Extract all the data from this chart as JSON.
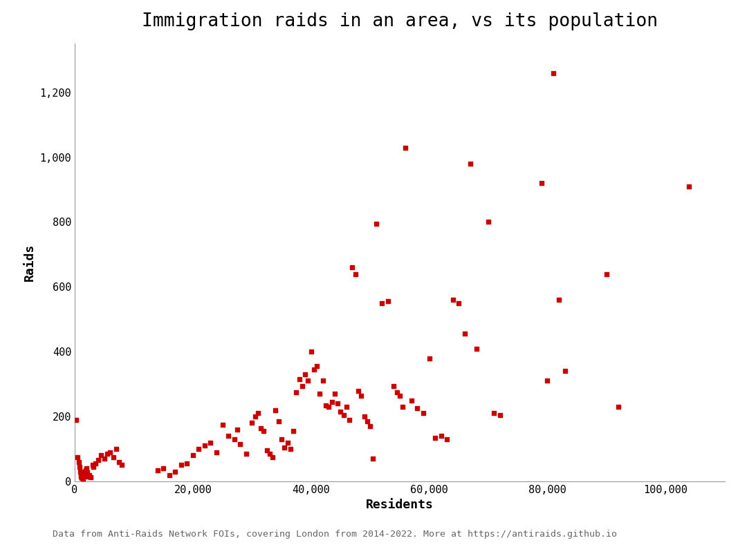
{
  "title": "Immigration raids in an area, vs its population",
  "xlabel": "Residents",
  "ylabel": "Raids",
  "footnote": "Data from Anti-Raids Network FOIs, covering London from 2014-2022. More at https://antiraids.github.io",
  "xlim": [
    0,
    110000
  ],
  "ylim": [
    0,
    1350
  ],
  "point_color": "#cc0000",
  "marker_size": 25,
  "background_color": "#ffffff",
  "points": [
    [
      200,
      190
    ],
    [
      500,
      75
    ],
    [
      700,
      60
    ],
    [
      800,
      45
    ],
    [
      900,
      30
    ],
    [
      1000,
      20
    ],
    [
      1100,
      15
    ],
    [
      1200,
      10
    ],
    [
      1300,
      12
    ],
    [
      1400,
      8
    ],
    [
      1500,
      25
    ],
    [
      1600,
      18
    ],
    [
      1700,
      22
    ],
    [
      1800,
      30
    ],
    [
      1900,
      35
    ],
    [
      2000,
      40
    ],
    [
      2100,
      28
    ],
    [
      2200,
      15
    ],
    [
      2500,
      20
    ],
    [
      2700,
      12
    ],
    [
      3000,
      50
    ],
    [
      3200,
      45
    ],
    [
      3500,
      55
    ],
    [
      4000,
      65
    ],
    [
      4500,
      80
    ],
    [
      5000,
      70
    ],
    [
      5500,
      85
    ],
    [
      6000,
      90
    ],
    [
      6500,
      75
    ],
    [
      7000,
      100
    ],
    [
      7500,
      60
    ],
    [
      8000,
      50
    ],
    [
      14000,
      35
    ],
    [
      15000,
      40
    ],
    [
      16000,
      20
    ],
    [
      17000,
      30
    ],
    [
      18000,
      50
    ],
    [
      19000,
      55
    ],
    [
      20000,
      80
    ],
    [
      21000,
      100
    ],
    [
      22000,
      110
    ],
    [
      23000,
      120
    ],
    [
      24000,
      90
    ],
    [
      25000,
      175
    ],
    [
      26000,
      140
    ],
    [
      27000,
      130
    ],
    [
      27500,
      160
    ],
    [
      28000,
      115
    ],
    [
      29000,
      85
    ],
    [
      30000,
      180
    ],
    [
      30500,
      200
    ],
    [
      31000,
      210
    ],
    [
      31500,
      165
    ],
    [
      32000,
      155
    ],
    [
      32500,
      95
    ],
    [
      33000,
      85
    ],
    [
      33500,
      75
    ],
    [
      34000,
      220
    ],
    [
      34500,
      185
    ],
    [
      35000,
      130
    ],
    [
      35500,
      105
    ],
    [
      36000,
      120
    ],
    [
      36500,
      100
    ],
    [
      37000,
      155
    ],
    [
      37500,
      275
    ],
    [
      38000,
      315
    ],
    [
      38500,
      295
    ],
    [
      39000,
      330
    ],
    [
      39500,
      310
    ],
    [
      40000,
      400
    ],
    [
      40500,
      345
    ],
    [
      41000,
      355
    ],
    [
      41500,
      270
    ],
    [
      42000,
      310
    ],
    [
      42500,
      235
    ],
    [
      43000,
      230
    ],
    [
      43500,
      245
    ],
    [
      44000,
      270
    ],
    [
      44500,
      240
    ],
    [
      45000,
      215
    ],
    [
      45500,
      205
    ],
    [
      46000,
      230
    ],
    [
      46500,
      190
    ],
    [
      47000,
      660
    ],
    [
      47500,
      640
    ],
    [
      48000,
      280
    ],
    [
      48500,
      265
    ],
    [
      49000,
      200
    ],
    [
      49500,
      185
    ],
    [
      50000,
      170
    ],
    [
      50500,
      70
    ],
    [
      51000,
      795
    ],
    [
      52000,
      550
    ],
    [
      53000,
      555
    ],
    [
      54000,
      295
    ],
    [
      54500,
      275
    ],
    [
      55000,
      265
    ],
    [
      55500,
      230
    ],
    [
      56000,
      1030
    ],
    [
      57000,
      250
    ],
    [
      58000,
      225
    ],
    [
      59000,
      210
    ],
    [
      60000,
      380
    ],
    [
      61000,
      135
    ],
    [
      62000,
      140
    ],
    [
      63000,
      130
    ],
    [
      64000,
      560
    ],
    [
      65000,
      550
    ],
    [
      66000,
      455
    ],
    [
      67000,
      980
    ],
    [
      68000,
      410
    ],
    [
      70000,
      800
    ],
    [
      71000,
      210
    ],
    [
      72000,
      205
    ],
    [
      79000,
      920
    ],
    [
      80000,
      310
    ],
    [
      81000,
      1260
    ],
    [
      82000,
      560
    ],
    [
      83000,
      340
    ],
    [
      90000,
      640
    ],
    [
      92000,
      230
    ],
    [
      104000,
      910
    ]
  ]
}
